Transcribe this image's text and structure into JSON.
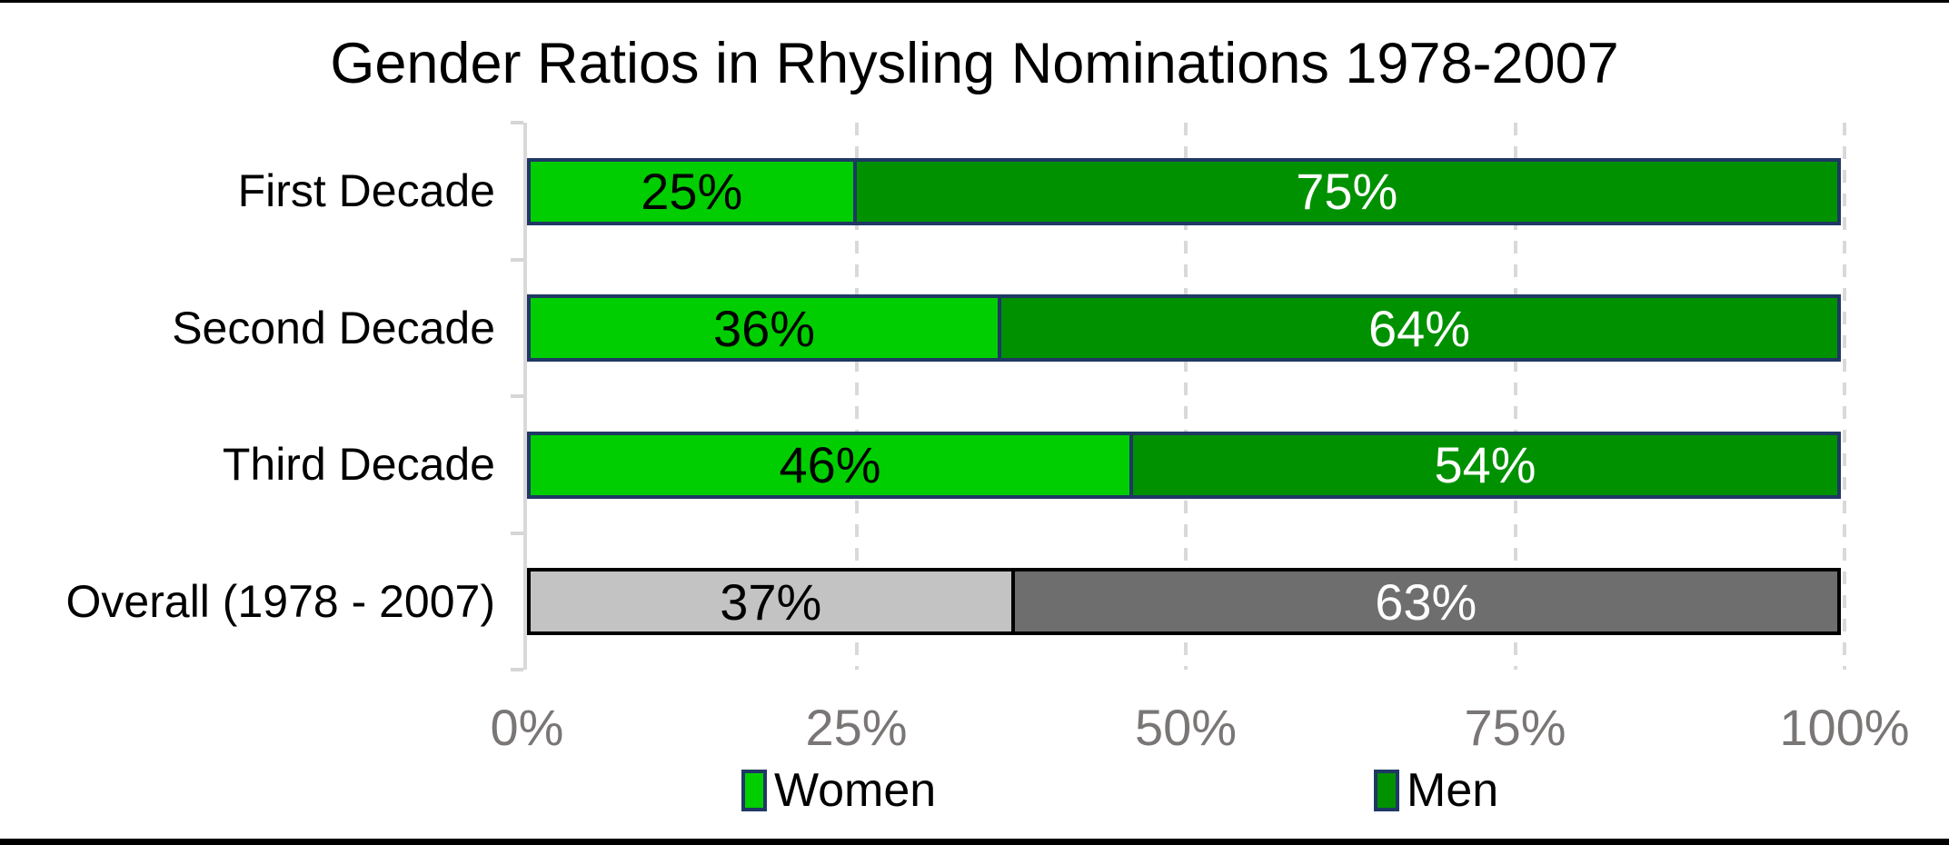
{
  "title": "Gender Ratios in Rhysling Nominations 1978-2007",
  "chart_data": {
    "type": "bar",
    "orientation": "horizontal",
    "stacked": true,
    "unit": "percent",
    "title": "Gender Ratios in Rhysling Nominations 1978-2007",
    "categories": [
      "First Decade",
      "Second Decade",
      "Third Decade",
      "Overall (1978 - 2007)"
    ],
    "series": [
      {
        "name": "Women",
        "values": [
          25,
          36,
          46,
          37
        ]
      },
      {
        "name": "Men",
        "values": [
          75,
          64,
          54,
          63
        ]
      }
    ],
    "rows": [
      {
        "category": "First Decade",
        "border_color": "#1F3864",
        "segments": [
          {
            "series": "Women",
            "value": 25,
            "label": "25%",
            "fill": "#00CE00",
            "text_color": "#000000"
          },
          {
            "series": "Men",
            "value": 75,
            "label": "75%",
            "fill": "#009100",
            "text_color": "#FFFFFF"
          }
        ]
      },
      {
        "category": "Second Decade",
        "border_color": "#1F3864",
        "segments": [
          {
            "series": "Women",
            "value": 36,
            "label": "36%",
            "fill": "#00CE00",
            "text_color": "#000000"
          },
          {
            "series": "Men",
            "value": 64,
            "label": "64%",
            "fill": "#009100",
            "text_color": "#FFFFFF"
          }
        ]
      },
      {
        "category": "Third Decade",
        "border_color": "#1F3864",
        "segments": [
          {
            "series": "Women",
            "value": 46,
            "label": "46%",
            "fill": "#00CE00",
            "text_color": "#000000"
          },
          {
            "series": "Men",
            "value": 54,
            "label": "54%",
            "fill": "#009100",
            "text_color": "#FFFFFF"
          }
        ]
      },
      {
        "category": "Overall (1978 - 2007)",
        "border_color": "#000000",
        "segments": [
          {
            "series": "Women",
            "value": 37,
            "label": "37%",
            "fill": "#C3C3C3",
            "text_color": "#000000"
          },
          {
            "series": "Men",
            "value": 63,
            "label": "63%",
            "fill": "#6E6E6E",
            "text_color": "#FFFFFF"
          }
        ]
      }
    ],
    "x_axis": {
      "ticks": [
        "0%",
        "25%",
        "50%",
        "75%",
        "100%"
      ],
      "min": 0,
      "max": 100,
      "text_color": "#7A7676"
    },
    "grid": {
      "style": "dashed-vertical",
      "color": "#D9D9D9"
    },
    "axis_line_color": "#D9D9D9",
    "legend": {
      "position": "bottom",
      "items": [
        {
          "label": "Women",
          "fill": "#00CE00",
          "border": "#1F3864"
        },
        {
          "label": "Men",
          "fill": "#009100",
          "border": "#1F3864"
        }
      ]
    }
  }
}
